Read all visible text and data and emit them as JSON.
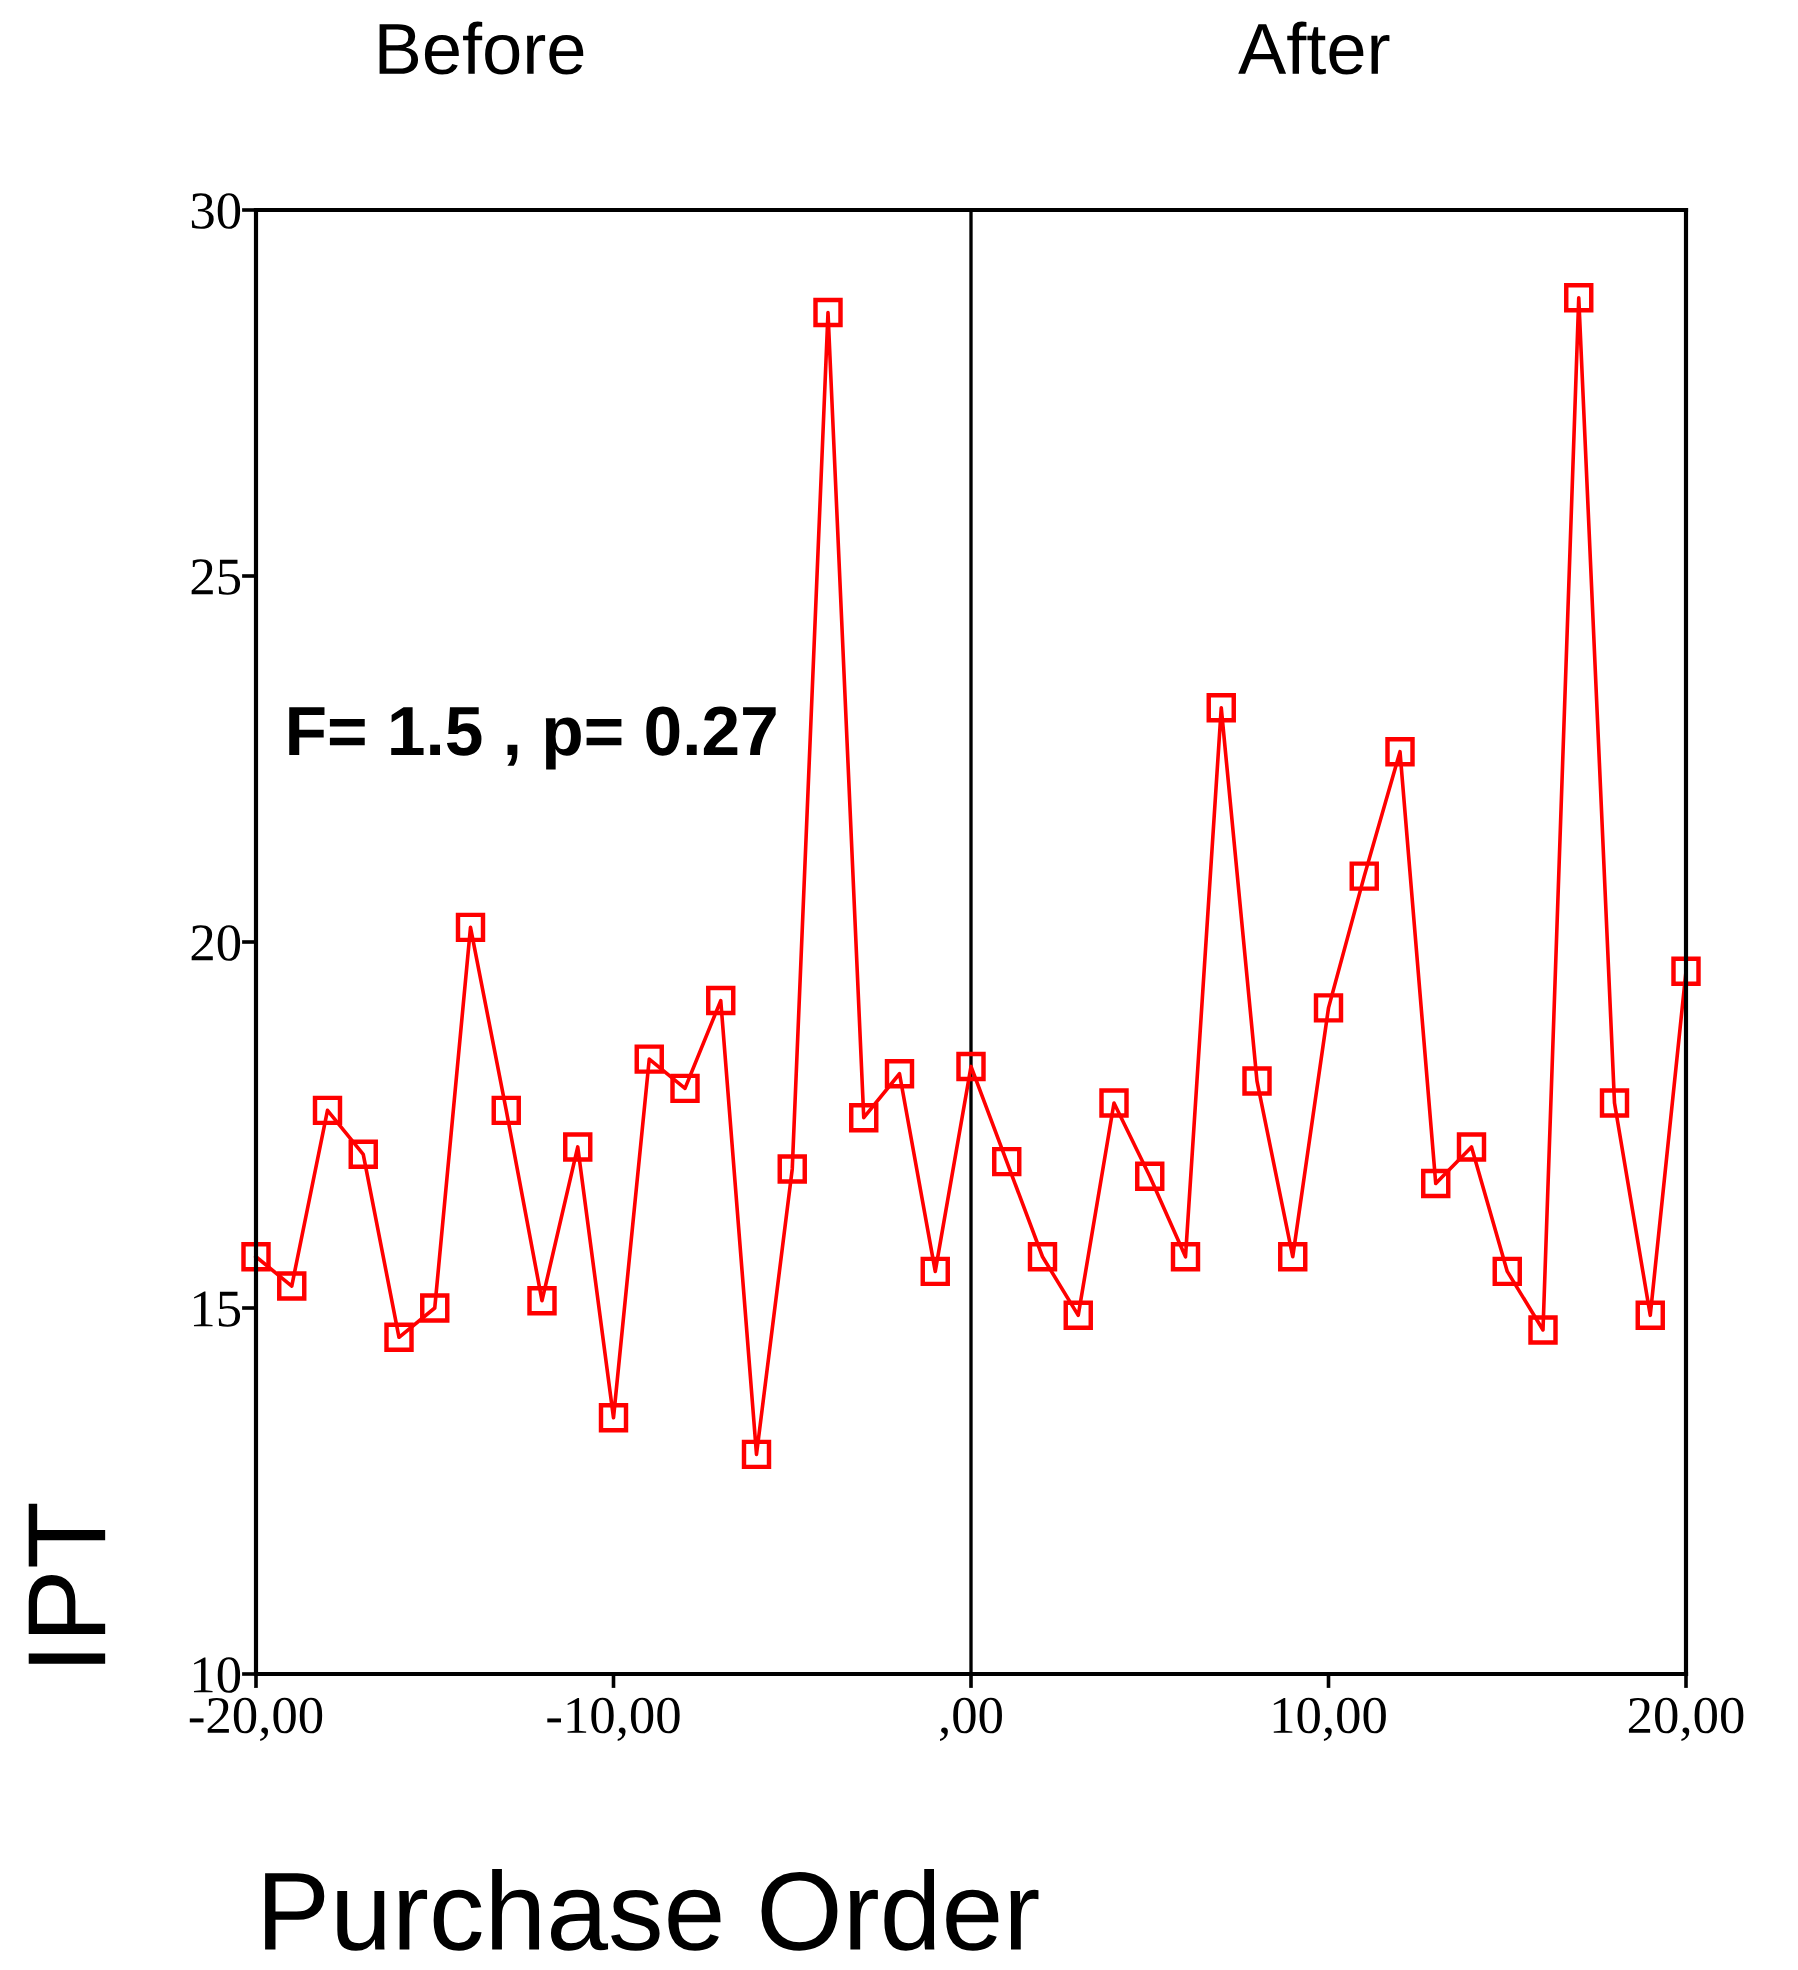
{
  "chart_data": {
    "type": "line",
    "xlabel": "Purchase Order",
    "ylabel": "IPT",
    "annotations": [
      "Before",
      "After",
      "F= 1.5 , p= 0.27"
    ],
    "x": [
      -20,
      -19,
      -18,
      -17,
      -16,
      -15,
      -14,
      -13,
      -12,
      -11,
      -10,
      -9,
      -8,
      -7,
      -6,
      -5,
      -4,
      -3,
      -2,
      -1,
      0,
      1,
      2,
      3,
      4,
      5,
      6,
      7,
      8,
      9,
      10,
      11,
      12,
      13,
      14,
      15,
      16,
      17,
      18,
      19,
      20
    ],
    "series": [
      {
        "color": "#ff0000",
        "values": [
          15.7,
          15.3,
          17.7,
          17.1,
          14.6,
          15.0,
          20.2,
          17.7,
          15.1,
          17.2,
          13.5,
          18.4,
          18.0,
          19.2,
          13.0,
          16.9,
          28.6,
          17.6,
          18.2,
          15.5,
          18.3,
          17.0,
          15.7,
          14.9,
          17.8,
          16.8,
          15.7,
          23.2,
          18.1,
          15.7,
          19.1,
          20.9,
          22.6,
          16.7,
          17.2,
          15.5,
          14.7,
          28.8,
          17.8,
          14.9,
          19.6
        ]
      }
    ],
    "xlim": [
      -20,
      20
    ],
    "ylim": [
      10,
      30
    ],
    "xticks": [
      {
        "value": -20,
        "label": "-20,00"
      },
      {
        "value": -10,
        "label": "-10,00"
      },
      {
        "value": 0,
        "label": ",00"
      },
      {
        "value": 10,
        "label": "10,00"
      },
      {
        "value": 20,
        "label": "20,00"
      }
    ],
    "yticks": [
      10,
      15,
      20,
      25,
      30
    ],
    "ref_lines": [
      {
        "axis": "x",
        "value": 0,
        "color": "#000000"
      }
    ],
    "marker": "square",
    "line_style": "solid",
    "grid": false,
    "legend": false
  }
}
